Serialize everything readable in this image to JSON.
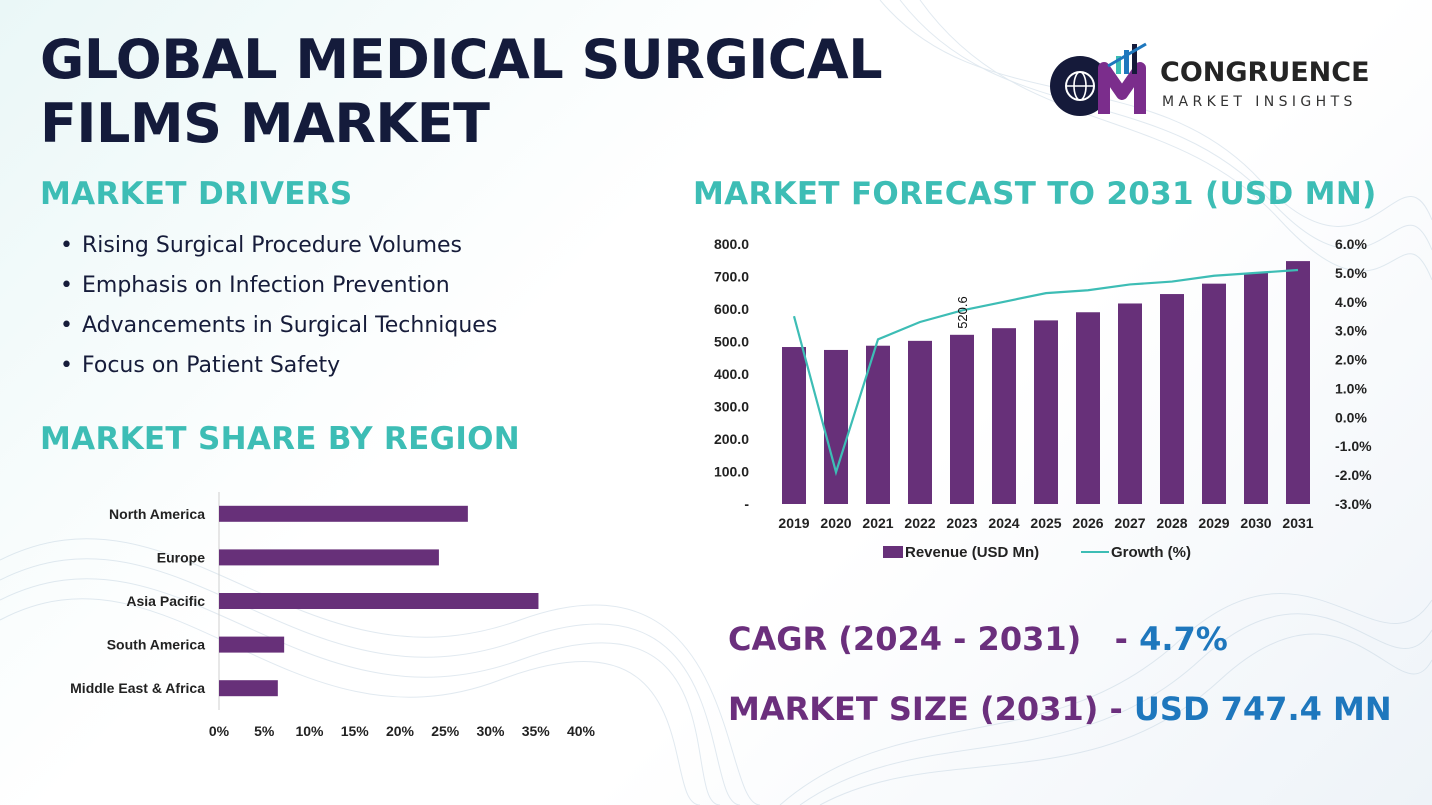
{
  "title": "GLOBAL MEDICAL SURGICAL FILMS MARKET",
  "logo": {
    "name": "CONGRUENCE",
    "sub": "MARKET INSIGHTS"
  },
  "drivers": {
    "heading": "MARKET DRIVERS",
    "items": [
      "Rising Surgical Procedure Volumes",
      "Emphasis on Infection Prevention",
      "Advancements in Surgical Techniques",
      "Focus on Patient Safety"
    ]
  },
  "share": {
    "heading": "MARKET SHARE BY REGION"
  },
  "forecast": {
    "heading": "MARKET FORECAST TO 2031 (USD MN)"
  },
  "kpis": {
    "cagr_label": "CAGR (2024 - 2031)",
    "cagr_sep": "-",
    "cagr_value": "4.7%",
    "size_label": "MARKET SIZE (2031)",
    "size_sep": "-",
    "size_value": "USD 747.4 MN"
  },
  "colors": {
    "bar": "#673079",
    "line": "#3dbdb5",
    "heading": "#3dbdb5",
    "title": "#141b3b",
    "value": "#1e77bd"
  },
  "chart_data": [
    {
      "type": "bar",
      "categories": [
        "2019",
        "2020",
        "2021",
        "2022",
        "2023",
        "2024",
        "2025",
        "2026",
        "2027",
        "2028",
        "2029",
        "2030",
        "2031"
      ],
      "series": [
        {
          "name": "Revenue (USD Mn)",
          "values": [
            483,
            474,
            487,
            502,
            520.6,
            541,
            565,
            590,
            617,
            646,
            678,
            711,
            747.4
          ]
        },
        {
          "name": "Growth (%)",
          "type": "line",
          "axis": "secondary",
          "values": [
            3.5,
            -1.9,
            2.7,
            3.3,
            3.7,
            4.0,
            4.3,
            4.4,
            4.6,
            4.7,
            4.9,
            5.0,
            5.1
          ]
        }
      ],
      "data_labels": [
        {
          "category": "2023",
          "text": "520.6"
        }
      ],
      "ylim": [
        0,
        800
      ],
      "yticks": [
        "-",
        "100.0",
        "200.0",
        "300.0",
        "400.0",
        "500.0",
        "600.0",
        "700.0",
        "800.0"
      ],
      "y2lim": [
        -3,
        6
      ],
      "y2ticks": [
        "-3.0%",
        "-2.0%",
        "-1.0%",
        "0.0%",
        "1.0%",
        "2.0%",
        "3.0%",
        "4.0%",
        "5.0%",
        "6.0%"
      ],
      "legend": "bottom",
      "grid": false
    },
    {
      "type": "bar",
      "orientation": "horizontal",
      "categories": [
        "North America",
        "Europe",
        "Asia Pacific",
        "South America",
        "Middle East & Africa"
      ],
      "values": [
        27.5,
        24.3,
        35.3,
        7.2,
        6.5
      ],
      "xlim": [
        0,
        40
      ],
      "xticks": [
        "0%",
        "5%",
        "10%",
        "15%",
        "20%",
        "25%",
        "30%",
        "35%",
        "40%"
      ],
      "grid": false
    }
  ]
}
